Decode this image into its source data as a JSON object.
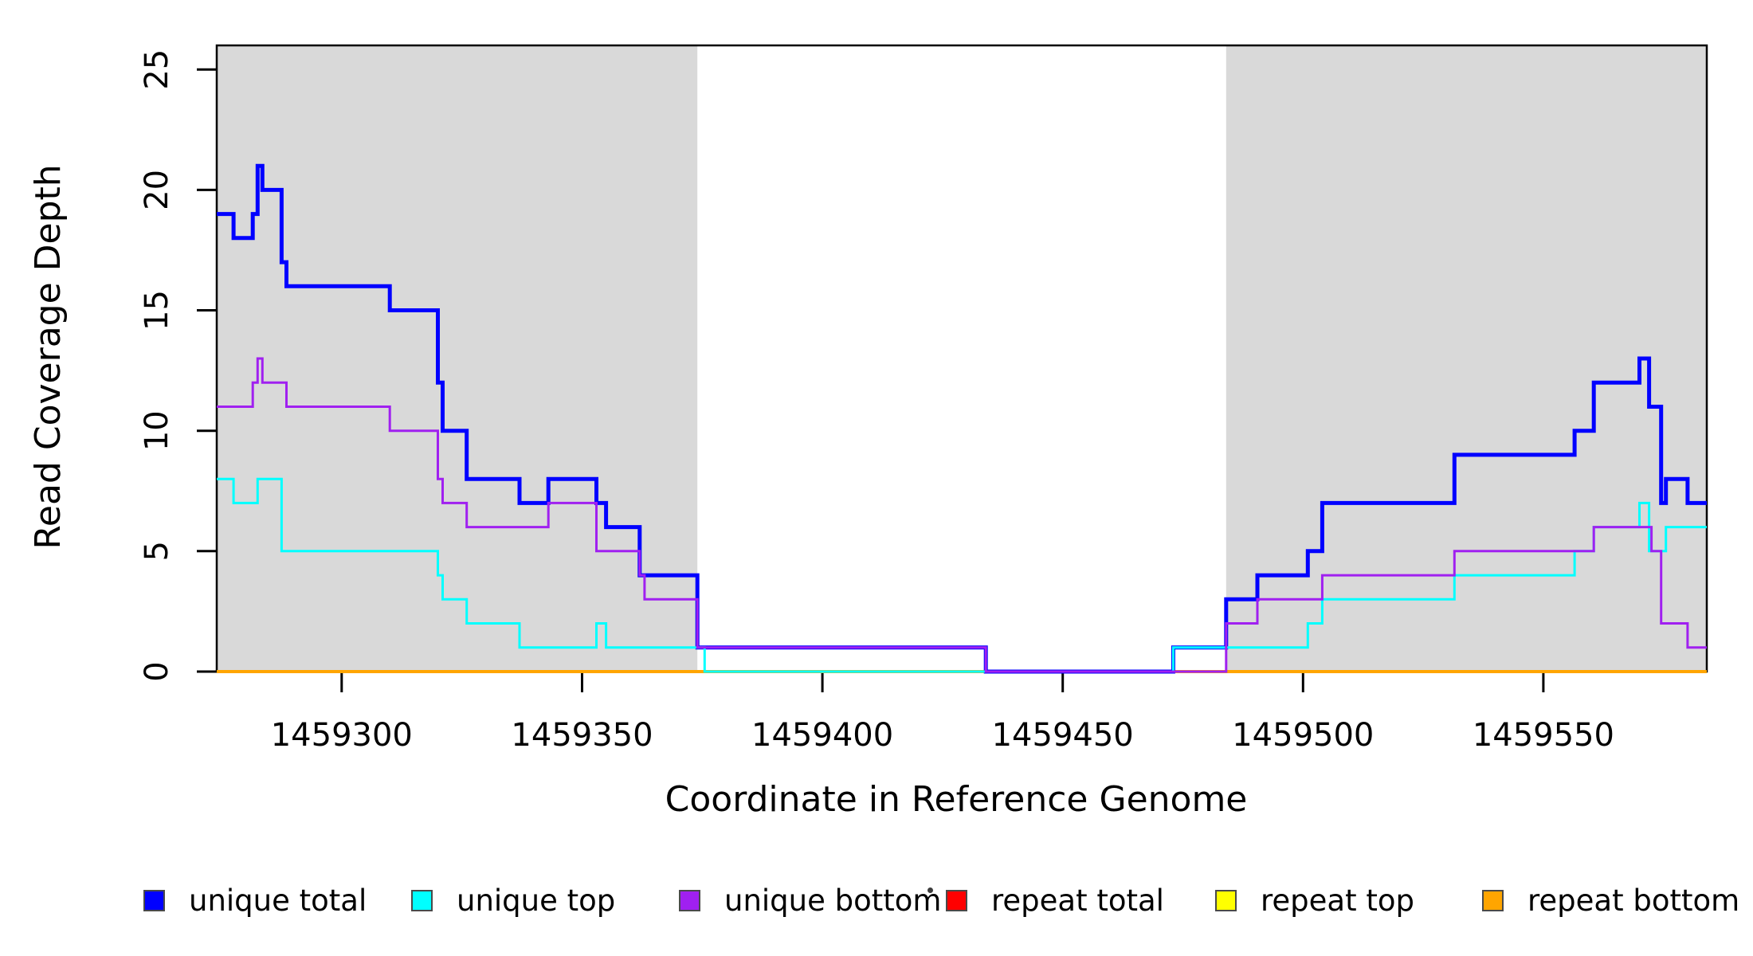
{
  "figure": {
    "background": "#ffffff"
  },
  "chart_data": {
    "type": "line",
    "subtype": "step-coverage",
    "title": "",
    "xlabel": "Coordinate in Reference Genome",
    "ylabel": "Read Coverage Depth",
    "xlim": [
      1459274,
      1459584
    ],
    "ylim": [
      0,
      26
    ],
    "x_ticks": [
      1459300,
      1459350,
      1459400,
      1459450,
      1459500,
      1459550
    ],
    "y_ticks": [
      0,
      5,
      10,
      15,
      20,
      25
    ],
    "grid": "off",
    "plot_background": "#ffffff",
    "shaded_region_color": "#d9d9d9",
    "shaded_regions": [
      {
        "from": 1459274,
        "to": 1459374
      },
      {
        "from": 1459484,
        "to": 1459584
      }
    ],
    "draw_order": [
      3,
      4,
      5,
      0,
      1,
      2
    ],
    "series": [
      {
        "name": "unique total",
        "color": "#0000ff",
        "line_width": 5,
        "runs": [
          [
            1459274,
            1459277.5,
            19
          ],
          [
            1459277.5,
            1459281.5,
            18
          ],
          [
            1459281.5,
            1459282.5,
            19
          ],
          [
            1459282.5,
            1459283.5,
            21
          ],
          [
            1459283.5,
            1459287.5,
            20
          ],
          [
            1459287.5,
            1459288.5,
            17
          ],
          [
            1459288.5,
            1459310,
            16
          ],
          [
            1459310,
            1459320,
            15
          ],
          [
            1459320,
            1459321,
            12
          ],
          [
            1459321,
            1459326,
            10
          ],
          [
            1459326,
            1459337,
            8
          ],
          [
            1459337,
            1459343,
            7
          ],
          [
            1459343,
            1459353,
            8
          ],
          [
            1459353,
            1459355,
            7
          ],
          [
            1459355,
            1459362,
            6
          ],
          [
            1459362,
            1459374,
            4
          ],
          [
            1459374,
            1459434,
            1
          ],
          [
            1459434,
            1459473,
            0
          ],
          [
            1459473,
            1459484,
            1
          ],
          [
            1459484,
            1459490.5,
            3
          ],
          [
            1459490.5,
            1459501,
            4
          ],
          [
            1459501,
            1459504,
            5
          ],
          [
            1459504,
            1459531.5,
            7
          ],
          [
            1459531.5,
            1459556.5,
            9
          ],
          [
            1459556.5,
            1459560.5,
            10
          ],
          [
            1459560.5,
            1459570,
            12
          ],
          [
            1459570,
            1459572,
            13
          ],
          [
            1459572,
            1459574.5,
            11
          ],
          [
            1459574.5,
            1459575.5,
            7
          ],
          [
            1459575.5,
            1459580,
            8
          ],
          [
            1459580,
            1459584,
            7
          ]
        ]
      },
      {
        "name": "unique top",
        "color": "#00ffff",
        "line_width": 3,
        "runs": [
          [
            1459274,
            1459277.5,
            8
          ],
          [
            1459277.5,
            1459282.5,
            7
          ],
          [
            1459282.5,
            1459287.5,
            8
          ],
          [
            1459287.5,
            1459320,
            5
          ],
          [
            1459320,
            1459321,
            4
          ],
          [
            1459321,
            1459326,
            3
          ],
          [
            1459326,
            1459337,
            2
          ],
          [
            1459337,
            1459353,
            1
          ],
          [
            1459353,
            1459355,
            2
          ],
          [
            1459355,
            1459375.5,
            1
          ],
          [
            1459375.5,
            1459473,
            0
          ],
          [
            1459473,
            1459501,
            1
          ],
          [
            1459501,
            1459504,
            2
          ],
          [
            1459504,
            1459531.5,
            3
          ],
          [
            1459531.5,
            1459556.5,
            4
          ],
          [
            1459556.5,
            1459560.5,
            5
          ],
          [
            1459560.5,
            1459570,
            6
          ],
          [
            1459570,
            1459572,
            7
          ],
          [
            1459572,
            1459575.5,
            5
          ],
          [
            1459575.5,
            1459584,
            6
          ]
        ]
      },
      {
        "name": "unique bottom",
        "color": "#a020f0",
        "line_width": 3,
        "runs": [
          [
            1459274,
            1459281.5,
            11
          ],
          [
            1459281.5,
            1459282.5,
            12
          ],
          [
            1459282.5,
            1459283.5,
            13
          ],
          [
            1459283.5,
            1459288.5,
            12
          ],
          [
            1459288.5,
            1459310,
            11
          ],
          [
            1459310,
            1459320,
            10
          ],
          [
            1459320,
            1459321,
            8
          ],
          [
            1459321,
            1459326,
            7
          ],
          [
            1459326,
            1459343,
            6
          ],
          [
            1459343,
            1459353,
            7
          ],
          [
            1459353,
            1459362,
            5
          ],
          [
            1459362,
            1459363,
            4
          ],
          [
            1459363,
            1459374,
            3
          ],
          [
            1459374,
            1459434,
            1
          ],
          [
            1459434,
            1459484,
            0
          ],
          [
            1459484,
            1459490.5,
            2
          ],
          [
            1459490.5,
            1459504,
            3
          ],
          [
            1459504,
            1459531.5,
            4
          ],
          [
            1459531.5,
            1459560.5,
            5
          ],
          [
            1459560.5,
            1459572.5,
            6
          ],
          [
            1459572.5,
            1459574.5,
            5
          ],
          [
            1459574.5,
            1459580,
            2
          ],
          [
            1459580,
            1459584,
            1
          ]
        ]
      },
      {
        "name": "repeat total",
        "color": "#ff0000",
        "line_width": 2,
        "runs": [
          [
            1459274,
            1459584,
            0
          ]
        ]
      },
      {
        "name": "repeat top",
        "color": "#ffff00",
        "line_width": 2,
        "runs": [
          [
            1459274,
            1459584,
            0
          ]
        ]
      },
      {
        "name": "repeat bottom",
        "color": "#ffa500",
        "line_width": 4,
        "runs": [
          [
            1459274,
            1459584,
            0
          ]
        ]
      }
    ],
    "legend": {
      "position": "bottom",
      "items": [
        {
          "label": "unique total",
          "color": "#0000ff"
        },
        {
          "label": "unique top",
          "color": "#00ffff"
        },
        {
          "label": "unique bottom",
          "color": "#a020f0"
        },
        {
          "label": "repeat total",
          "color": "#ff0000"
        },
        {
          "label": "repeat top",
          "color": "#ffff00"
        },
        {
          "label": "repeat bottom",
          "color": "#ffa500"
        }
      ]
    }
  }
}
